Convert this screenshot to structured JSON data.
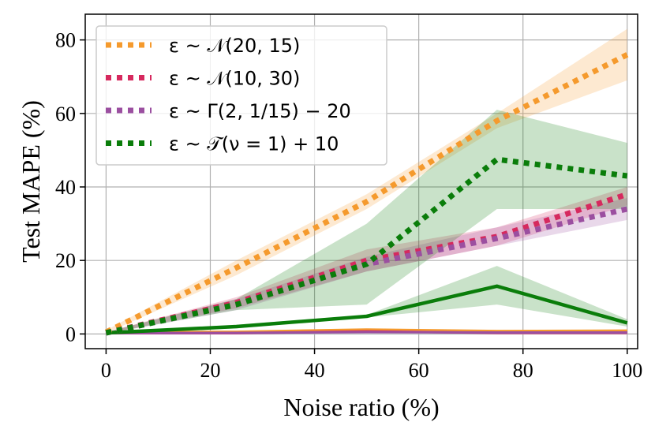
{
  "chart_data": {
    "type": "line",
    "title": "",
    "xlabel": "Noise ratio (%)",
    "ylabel": "Test MAPE (%)",
    "xlim": [
      -4,
      102
    ],
    "ylim": [
      -4,
      87
    ],
    "xticks": [
      0,
      20,
      40,
      60,
      80,
      100
    ],
    "yticks": [
      0,
      20,
      40,
      60,
      80
    ],
    "grid": true,
    "legend": "top-left",
    "x": [
      0,
      25,
      50,
      75,
      100
    ],
    "series": [
      {
        "name": "ε ~ 𝒩(20, 15)",
        "color": "#f59a2d",
        "style": "dotted",
        "lineWidth": 7,
        "legend": true,
        "values": [
          0.5,
          18,
          36,
          58,
          76
        ],
        "lower": [
          0.2,
          16,
          34,
          56,
          69
        ],
        "upper": [
          1.0,
          20,
          38,
          60,
          83
        ]
      },
      {
        "name": "ε ~ 𝒩(10, 30)",
        "color": "#d6295e",
        "style": "dotted",
        "lineWidth": 7,
        "legend": true,
        "values": [
          0.3,
          8.5,
          20,
          26.5,
          38
        ],
        "lower": [
          0.1,
          7,
          17,
          24,
          35
        ],
        "upper": [
          0.5,
          10,
          23,
          29,
          40
        ]
      },
      {
        "name": "ε ~ Γ(2, 1/15) − 20",
        "color": "#9b4fa0",
        "style": "dotted",
        "lineWidth": 7,
        "legend": true,
        "values": [
          0.3,
          8,
          19,
          26,
          34
        ],
        "lower": [
          0.1,
          6.5,
          17,
          24,
          31
        ],
        "upper": [
          0.5,
          9.5,
          21,
          29,
          37
        ]
      },
      {
        "name": "ε ~ 𝒯(ν = 1) + 10",
        "color": "#0a7d0a",
        "style": "dotted",
        "lineWidth": 7,
        "legend": true,
        "values": [
          0.3,
          8,
          19,
          47.5,
          43
        ],
        "lower": [
          0.1,
          6.5,
          8,
          34,
          34
        ],
        "upper": [
          0.5,
          9.5,
          30,
          61,
          52
        ]
      },
      {
        "name": "",
        "color": "#f59a2d",
        "style": "solid",
        "lineWidth": 3,
        "legend": false,
        "values": [
          0.5,
          0.6,
          1.2,
          0.8,
          0.9
        ]
      },
      {
        "name": "",
        "color": "#d6295e",
        "style": "solid",
        "lineWidth": 3,
        "legend": false,
        "values": [
          0.2,
          0.2,
          0.7,
          0.3,
          0.3
        ]
      },
      {
        "name": "",
        "color": "#9b4fa0",
        "style": "solid",
        "lineWidth": 3,
        "legend": false,
        "values": [
          0.2,
          0.3,
          0.5,
          0.4,
          0.4
        ]
      },
      {
        "name": "",
        "color": "#0a7d0a",
        "style": "solid",
        "lineWidth": 4.5,
        "legend": false,
        "values": [
          0.3,
          2,
          4.8,
          13,
          3
        ],
        "lower": [
          0.1,
          1.5,
          4.5,
          8,
          2
        ],
        "upper": [
          0.5,
          2.5,
          5.2,
          18.5,
          4
        ]
      }
    ]
  }
}
